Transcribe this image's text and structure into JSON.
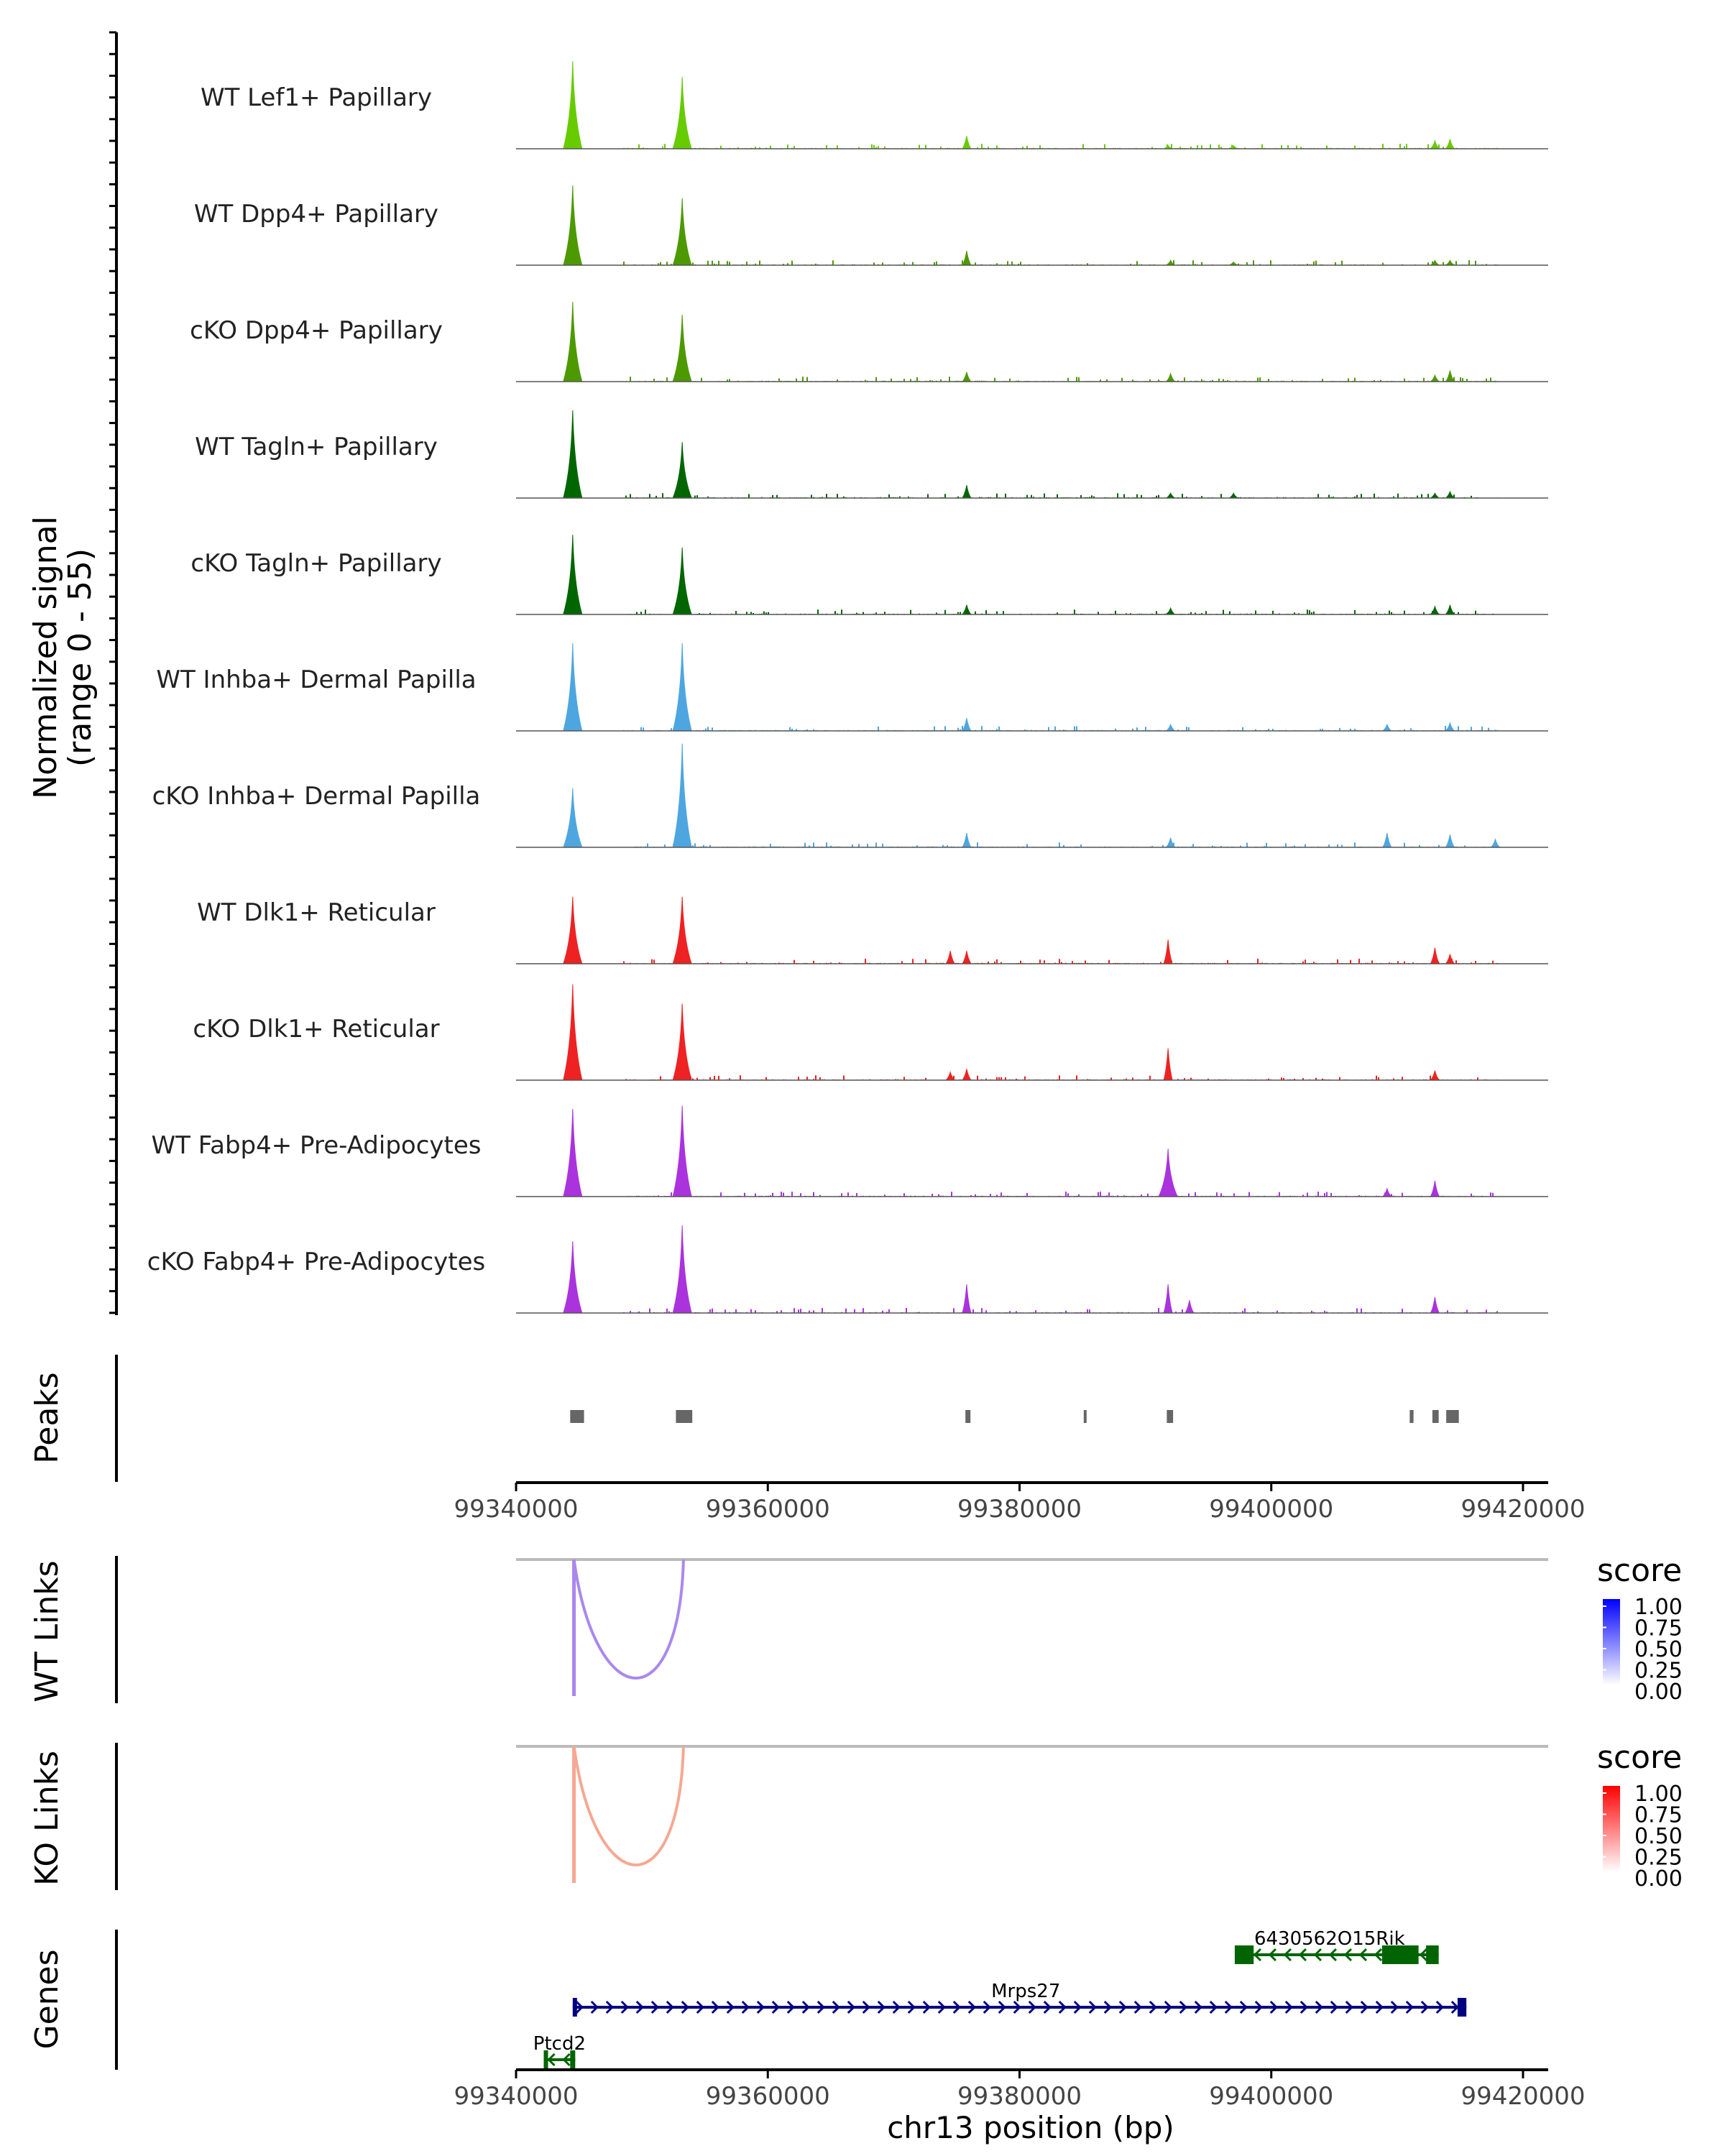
{
  "chart_data": {
    "type": "area",
    "chromosome": "chr13",
    "x_range": [
      99340000,
      99422000
    ],
    "x_ticks": [
      99340000,
      99360000,
      99380000,
      99400000,
      99420000
    ],
    "x_tick_labels": [
      "99340000",
      "99360000",
      "99380000",
      "99400000",
      "99420000"
    ],
    "xlabel": "chr13 position (bp)",
    "ylabel_line1": "Normalized signal",
    "ylabel_line2": "(range 0 - 55)",
    "y_range": [
      0,
      55
    ],
    "coverage_tracks": [
      {
        "label": "WT Lef1+ Papillary",
        "color": "#66cc00",
        "peaks": [
          [
            99344500,
            55
          ],
          [
            99353200,
            45
          ],
          [
            99375800,
            8
          ],
          [
            99391800,
            2
          ],
          [
            99397000,
            2
          ],
          [
            99413000,
            5
          ],
          [
            99414200,
            6
          ]
        ]
      },
      {
        "label": "WT Dpp4+ Papillary",
        "color": "#4d9900",
        "peaks": [
          [
            99344500,
            50
          ],
          [
            99353200,
            42
          ],
          [
            99375800,
            9
          ],
          [
            99392000,
            3
          ],
          [
            99397000,
            2
          ],
          [
            99413000,
            3
          ],
          [
            99414200,
            3
          ]
        ]
      },
      {
        "label": "cKO Dpp4+ Papillary",
        "color": "#4d9900",
        "peaks": [
          [
            99344500,
            50
          ],
          [
            99353200,
            42
          ],
          [
            99375800,
            6
          ],
          [
            99392000,
            5
          ],
          [
            99413000,
            4
          ],
          [
            99414200,
            7
          ]
        ]
      },
      {
        "label": "WT Tagln+ Papillary",
        "color": "#006600",
        "peaks": [
          [
            99344500,
            55
          ],
          [
            99353200,
            35
          ],
          [
            99375800,
            8
          ],
          [
            99392000,
            3
          ],
          [
            99397000,
            3
          ],
          [
            99413000,
            3
          ],
          [
            99414200,
            4
          ]
        ]
      },
      {
        "label": "cKO Tagln+ Papillary",
        "color": "#006600",
        "peaks": [
          [
            99344500,
            50
          ],
          [
            99353200,
            42
          ],
          [
            99375800,
            6
          ],
          [
            99392000,
            4
          ],
          [
            99413000,
            5
          ],
          [
            99414200,
            6
          ]
        ]
      },
      {
        "label": "WT Inhba+ Dermal Papilla",
        "color": "#4da6e0",
        "peaks": [
          [
            99344500,
            55
          ],
          [
            99353200,
            55
          ],
          [
            99375800,
            8
          ],
          [
            99392000,
            4
          ],
          [
            99409200,
            4
          ],
          [
            99414200,
            5
          ]
        ]
      },
      {
        "label": "cKO Inhba+ Dermal Papilla",
        "color": "#4da6e0",
        "peaks": [
          [
            99344500,
            37
          ],
          [
            99353200,
            65
          ],
          [
            99375800,
            9
          ],
          [
            99392000,
            6
          ],
          [
            99409200,
            9
          ],
          [
            99414200,
            8
          ],
          [
            99417800,
            5
          ]
        ]
      },
      {
        "label": "WT Dlk1+ Reticular",
        "color": "#ee2222",
        "peaks": [
          [
            99344500,
            42
          ],
          [
            99353200,
            42
          ],
          [
            99374500,
            8
          ],
          [
            99375800,
            8
          ],
          [
            99391800,
            15
          ],
          [
            99413000,
            10
          ],
          [
            99414200,
            6
          ]
        ]
      },
      {
        "label": "cKO Dlk1+ Reticular",
        "color": "#ee2222",
        "peaks": [
          [
            99344500,
            60
          ],
          [
            99353200,
            48
          ],
          [
            99374500,
            5
          ],
          [
            99375800,
            7
          ],
          [
            99391800,
            20
          ],
          [
            99413000,
            6
          ]
        ]
      },
      {
        "label": "WT Fabp4+ Pre-Adipocytes",
        "color": "#aa33dd",
        "peaks": [
          [
            99344500,
            55
          ],
          [
            99353200,
            57
          ],
          [
            99391800,
            30
          ],
          [
            99409200,
            5
          ],
          [
            99413000,
            10
          ]
        ]
      },
      {
        "label": "cKO Fabp4+ Pre-Adipocytes",
        "color": "#aa33dd",
        "peaks": [
          [
            99344500,
            45
          ],
          [
            99353200,
            55
          ],
          [
            99375800,
            18
          ],
          [
            99391800,
            18
          ],
          [
            99393500,
            8
          ],
          [
            99413000,
            10
          ]
        ]
      }
    ],
    "peaks_track": {
      "label": "Peaks",
      "regions": [
        [
          99344300,
          99345400
        ],
        [
          99352700,
          99354000
        ],
        [
          99375700,
          99376100
        ],
        [
          99385100,
          99385200
        ],
        [
          99391700,
          99392200
        ],
        [
          99411000,
          99411300
        ],
        [
          99412800,
          99413300
        ],
        [
          99413900,
          99414900
        ]
      ]
    },
    "link_tracks": [
      {
        "label": "WT Links",
        "legend_title": "score",
        "color": "#aa88ee",
        "legend_colors": [
          "#ffffff",
          "#0000ff"
        ],
        "legend_ticks": [
          "1.00",
          "0.75",
          "0.50",
          "0.25",
          "0.00"
        ],
        "links": [
          {
            "start": 99344600,
            "end": 99353300,
            "score": 0.5
          }
        ]
      },
      {
        "label": "KO Links",
        "legend_title": "score",
        "color": "#f5a892",
        "legend_colors": [
          "#ffffff",
          "#ff0000"
        ],
        "legend_ticks": [
          "1.00",
          "0.75",
          "0.50",
          "0.25",
          "0.00"
        ],
        "links": [
          {
            "start": 99344600,
            "end": 99353300,
            "score": 0.4
          }
        ]
      }
    ],
    "genes_track": {
      "label": "Genes",
      "genes": [
        {
          "name": "6430562O15Rik",
          "start": 99397100,
          "end": 99413300,
          "strand": "-",
          "color": "#006400",
          "row": 0,
          "exons": [
            [
              99397100,
              99398600
            ],
            [
              99408800,
              99411700
            ],
            [
              99412300,
              99413300
            ]
          ]
        },
        {
          "name": "Mrps27",
          "start": 99344500,
          "end": 99415500,
          "strand": "+",
          "color": "#000080",
          "row": 1,
          "exons": [
            [
              99344500,
              99344800
            ],
            [
              99414800,
              99415500
            ]
          ]
        },
        {
          "name": "Ptcd2",
          "start": 99342200,
          "end": 99344700,
          "strand": "-",
          "color": "#006400",
          "row": 2,
          "exons": [
            [
              99342200,
              99342500
            ],
            [
              99344300,
              99344700
            ]
          ]
        }
      ]
    }
  }
}
